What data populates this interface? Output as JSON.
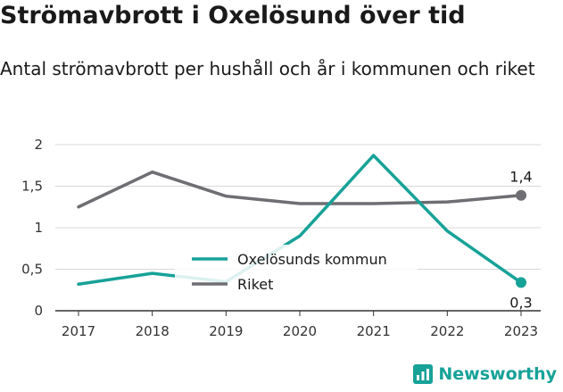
{
  "title": "Strömavbrott i Oxelösund över tid",
  "subtitle": "Antal strömavbrott per hushåll och år i kommunen och riket",
  "brand": "Newsworthy",
  "colors": {
    "kommun": "#17a298",
    "riket": "#6e6e73",
    "brand": "#17a298"
  },
  "chart_data": {
    "type": "line",
    "categories": [
      "2017",
      "2018",
      "2019",
      "2020",
      "2021",
      "2022",
      "2023"
    ],
    "series": [
      {
        "name": "Oxelösunds kommun",
        "values": [
          0.32,
          0.45,
          0.35,
          0.9,
          1.87,
          0.96,
          0.34
        ]
      },
      {
        "name": "Riket",
        "values": [
          1.25,
          1.67,
          1.38,
          1.29,
          1.29,
          1.31,
          1.39
        ]
      }
    ],
    "yticks": [
      "0",
      "0,5",
      "1",
      "1,5",
      "2"
    ],
    "ylim": [
      0,
      2
    ],
    "end_labels": {
      "kommun": "0,3",
      "riket": "1,4"
    },
    "legend_placement": "center"
  }
}
